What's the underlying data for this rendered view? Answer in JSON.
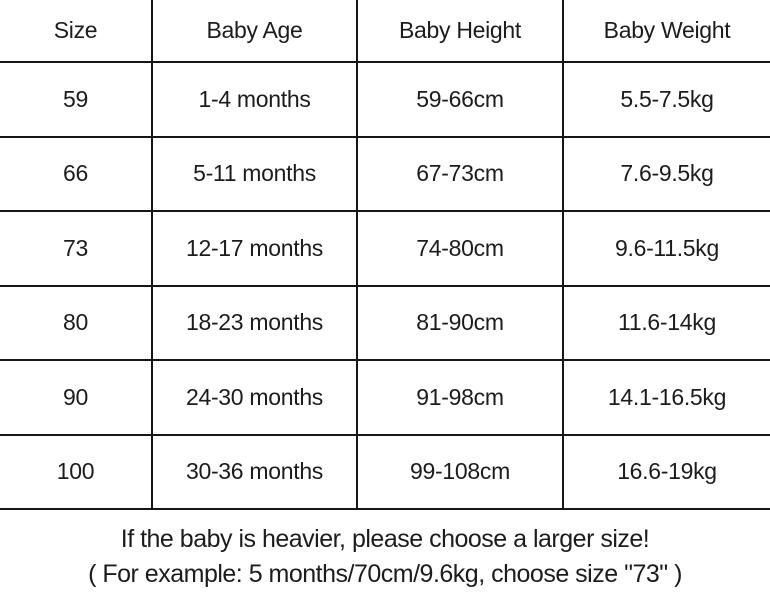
{
  "chart_data": {
    "type": "table",
    "columns": [
      "Size",
      "Baby Age",
      "Baby Height",
      "Baby Weight"
    ],
    "rows": [
      [
        "59",
        "1-4 months",
        "59-66cm",
        "5.5-7.5kg"
      ],
      [
        "66",
        "5-11 months",
        "67-73cm",
        "7.6-9.5kg"
      ],
      [
        "73",
        "12-17 months",
        "74-80cm",
        "9.6-11.5kg"
      ],
      [
        "80",
        "18-23 months",
        "81-90cm",
        "11.6-14kg"
      ],
      [
        "90",
        "24-30 months",
        "91-98cm",
        "14.1-16.5kg"
      ],
      [
        "100",
        "30-36 months",
        "99-108cm",
        "16.6-19kg"
      ]
    ],
    "notes": [
      "If the baby is heavier, please choose a larger size!",
      "( For example: 5 months/70cm/9.6kg, choose size \"73\" )"
    ]
  },
  "colors": {
    "text": "#1c1c1c",
    "border": "#161616",
    "background": "#ffffff"
  }
}
